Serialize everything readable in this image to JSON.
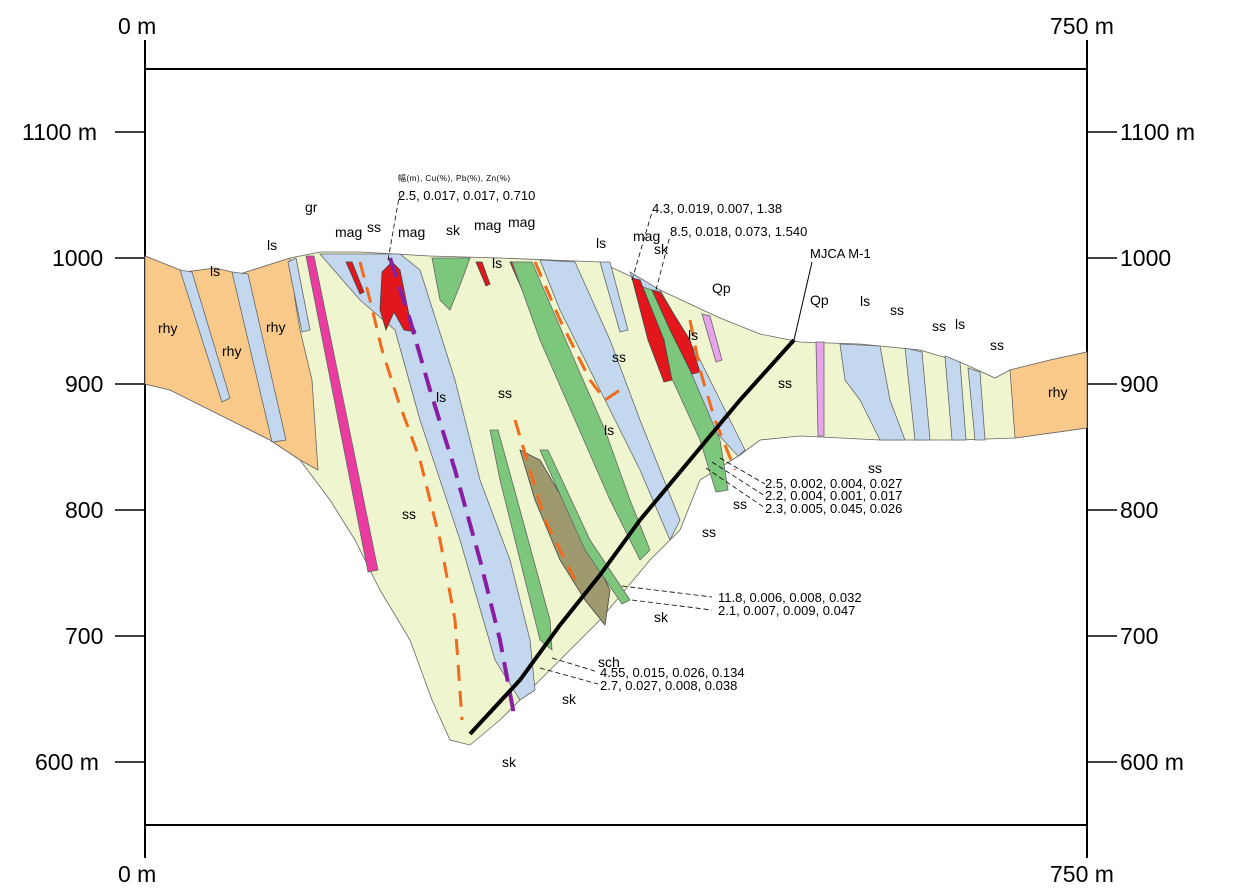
{
  "section": {
    "horizontal_axis": {
      "top_left": "0 m",
      "top_right": "750 m",
      "bottom_left": "0 m",
      "bottom_right": "750 m"
    },
    "elevation_axis": {
      "left_labels": [
        "1100 m",
        "1000",
        "900",
        "800",
        "700",
        "600 m"
      ],
      "right_labels": [
        "1100 m",
        "1000",
        "900",
        "800",
        "700",
        "600 m"
      ]
    },
    "assay_legend": "幅(m), Cu(%), Pb(%), Zn(%)",
    "drillhole": "MJCA M-1",
    "assays": [
      "2.5, 0.017, 0.017, 0.710",
      "4.3, 0.019, 0.007, 1.38",
      "8.5, 0.018, 0.073, 1.540",
      "2.5, 0.002, 0.004, 0.027",
      "2.2, 0.004, 0.001, 0.017",
      "2.3, 0.005, 0.045, 0.026",
      "11.8, 0.006, 0.008, 0.032",
      "2.1, 0.007, 0.009, 0.047",
      "4.55, 0.015, 0.026, 0.134",
      "2.7, 0.027, 0.008, 0.038"
    ],
    "units": {
      "ls": "ls",
      "rhy": "rhy",
      "gr": "gr",
      "mag": "mag",
      "ss": "ss",
      "sk": "sk",
      "qp": "Qp",
      "sch": "sch"
    },
    "colors": {
      "rhyolite": "#f9c98a",
      "limestone": "#c3d8ef",
      "sandstone": "#eef5cf",
      "skarn": "#7cc77c",
      "magnetite": "#e3171b",
      "granite_dike": "#ec3ba0",
      "quartz_porphyry": "#e9a3ec",
      "schist": "#9e9a6e",
      "fault_dashed": "#f26b1d",
      "vein_dashed": "#8a1ea3",
      "drillhole": "#000000"
    }
  }
}
